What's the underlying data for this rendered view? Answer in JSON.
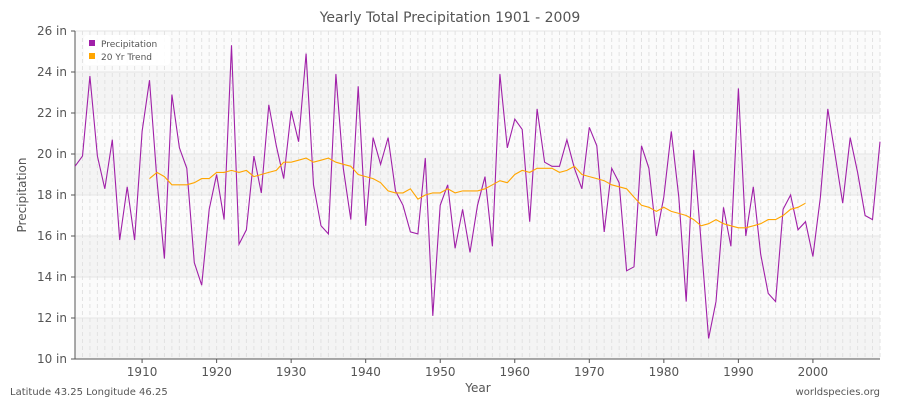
{
  "chart_data": {
    "type": "line",
    "title": "Yearly Total Precipitation 1901 - 2009",
    "xlabel": "Year",
    "ylabel": "Precipitation",
    "xlim": [
      1901,
      2009
    ],
    "ylim": [
      10,
      26
    ],
    "x_ticks": [
      1910,
      1920,
      1930,
      1940,
      1950,
      1960,
      1970,
      1980,
      1990,
      2000
    ],
    "y_ticks": [
      10,
      12,
      14,
      16,
      18,
      20,
      22,
      24,
      26
    ],
    "y_tick_labels": [
      "10 in",
      "12 in",
      "14 in",
      "16 in",
      "18 in",
      "20 in",
      "22 in",
      "24 in",
      "26 in"
    ],
    "grid": true,
    "legend_position": "top-left",
    "series": [
      {
        "name": "Precipitation",
        "color": "#a020a8",
        "start_year": 1901,
        "values": [
          19.4,
          19.9,
          23.8,
          19.9,
          18.3,
          20.7,
          15.8,
          18.4,
          15.8,
          21.1,
          23.6,
          18.7,
          14.9,
          22.9,
          20.3,
          19.3,
          14.7,
          13.6,
          17.3,
          19.0,
          16.8,
          25.3,
          15.6,
          16.3,
          19.9,
          18.1,
          22.4,
          20.4,
          18.8,
          22.1,
          20.6,
          24.9,
          18.5,
          16.5,
          16.1,
          23.9,
          19.3,
          16.8,
          23.3,
          16.5,
          20.8,
          19.5,
          20.8,
          18.2,
          17.5,
          16.2,
          16.1,
          19.8,
          12.1,
          17.5,
          18.5,
          15.4,
          17.3,
          15.2,
          17.5,
          18.9,
          15.5,
          23.9,
          20.3,
          21.7,
          21.2,
          16.7,
          22.2,
          19.6,
          19.4,
          19.4,
          20.7,
          19.3,
          18.3,
          21.3,
          20.4,
          16.2,
          19.3,
          18.6,
          14.3,
          14.5,
          20.4,
          19.3,
          16.0,
          17.9,
          21.1,
          17.9,
          12.8,
          20.2,
          15.7,
          11.0,
          12.8,
          17.4,
          15.5,
          23.2,
          16.0,
          18.4,
          15.1,
          13.2,
          12.8,
          17.3,
          18.0,
          16.3,
          16.7,
          15.0,
          17.9,
          22.2,
          19.9,
          17.6,
          20.8,
          19.1,
          17.0,
          16.8,
          20.6
        ]
      },
      {
        "name": "20 Yr Trend",
        "color": "#ffa500",
        "start_year": 1911,
        "values": [
          18.8,
          19.1,
          18.9,
          18.5,
          18.5,
          18.5,
          18.6,
          18.8,
          18.8,
          19.1,
          19.1,
          19.2,
          19.1,
          19.2,
          18.9,
          19.0,
          19.1,
          19.2,
          19.6,
          19.6,
          19.7,
          19.8,
          19.6,
          19.7,
          19.8,
          19.6,
          19.5,
          19.4,
          19.0,
          18.9,
          18.8,
          18.6,
          18.2,
          18.1,
          18.1,
          18.3,
          17.8,
          18.0,
          18.1,
          18.1,
          18.3,
          18.1,
          18.2,
          18.2,
          18.2,
          18.3,
          18.5,
          18.7,
          18.6,
          19.0,
          19.2,
          19.1,
          19.3,
          19.3,
          19.3,
          19.1,
          19.2,
          19.4,
          19.0,
          18.9,
          18.8,
          18.7,
          18.5,
          18.4,
          18.3,
          17.9,
          17.5,
          17.4,
          17.2,
          17.4,
          17.2,
          17.1,
          17.0,
          16.8,
          16.5,
          16.6,
          16.8,
          16.6,
          16.5,
          16.4,
          16.4,
          16.5,
          16.6,
          16.8,
          16.8,
          17.0,
          17.3,
          17.4,
          17.6
        ]
      }
    ]
  },
  "footer": {
    "location": "Latitude 43.25 Longitude 46.25",
    "source": "worldspecies.org"
  }
}
